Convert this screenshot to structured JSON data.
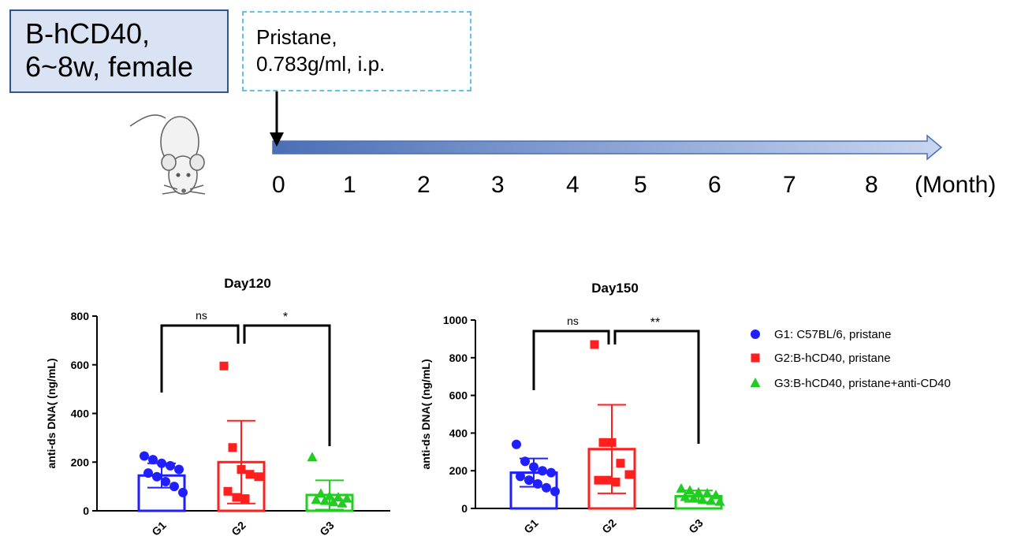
{
  "schema": {
    "strain_lines": [
      "B-hCD40,",
      "6~8w, female"
    ],
    "treatment_lines": [
      "Pristane,",
      "0.783g/ml, i.p."
    ],
    "timeline": {
      "ticks": [
        "0",
        "1",
        "2",
        "3",
        "4",
        "5",
        "6",
        "7",
        "8"
      ],
      "unit": "(Month)"
    },
    "colors": {
      "arrow_fill": "#8fa9dc",
      "arrow_stroke": "#4a6fb5"
    },
    "icon": "mouse-icon"
  },
  "legend": [
    {
      "label": "G1: C57BL/6, pristane",
      "marker": "circle",
      "color": "#1f1fff"
    },
    {
      "label": "G2:B-hCD40, pristane",
      "marker": "square",
      "color": "#ff1f1f"
    },
    {
      "label": "G3:B-hCD40, pristane+anti-CD40",
      "marker": "triangle",
      "color": "#22cc22"
    }
  ],
  "chart_data": [
    {
      "type": "bar",
      "title": "Day120",
      "ylabel": "anti-ds DNA( (ng/mL)",
      "ylim": [
        0,
        800
      ],
      "yticks": [
        0,
        200,
        400,
        600,
        800
      ],
      "categories": [
        "G1",
        "G2",
        "G3"
      ],
      "values": [
        145,
        200,
        65
      ],
      "errors": [
        50,
        170,
        60
      ],
      "points": [
        [
          225,
          210,
          195,
          185,
          170,
          155,
          140,
          120,
          100,
          75
        ],
        [
          595,
          260,
          170,
          150,
          140,
          80,
          55,
          50
        ],
        [
          220,
          70,
          60,
          55,
          50,
          45,
          40,
          35,
          30
        ]
      ],
      "significance": [
        {
          "groups": [
            "G1",
            "G2"
          ],
          "label": "ns"
        },
        {
          "groups": [
            "G2",
            "G3"
          ],
          "label": "*"
        }
      ]
    },
    {
      "type": "bar",
      "title": "Day150",
      "ylabel": "anti-ds DNA( (ng/mL)",
      "ylim": [
        0,
        1000
      ],
      "yticks": [
        0,
        200,
        400,
        600,
        800,
        1000
      ],
      "categories": [
        "G1",
        "G2",
        "G3"
      ],
      "values": [
        190,
        315,
        65
      ],
      "errors": [
        75,
        235,
        30
      ],
      "points": [
        [
          340,
          250,
          220,
          200,
          190,
          170,
          150,
          130,
          110,
          90
        ],
        [
          870,
          350,
          350,
          240,
          180,
          150,
          150,
          140
        ],
        [
          105,
          95,
          85,
          80,
          70,
          60,
          55,
          45,
          40,
          35
        ]
      ],
      "significance": [
        {
          "groups": [
            "G1",
            "G2"
          ],
          "label": "ns"
        },
        {
          "groups": [
            "G2",
            "G3"
          ],
          "label": "**"
        }
      ]
    }
  ]
}
